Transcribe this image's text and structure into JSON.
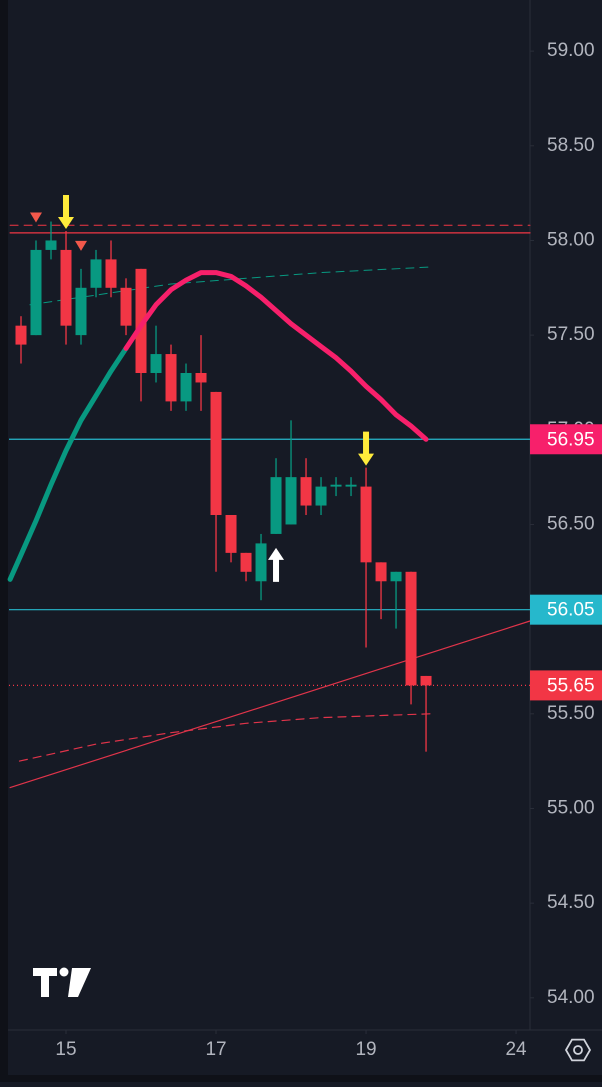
{
  "chart_data": {
    "type": "candlestick",
    "up_color": "#089981",
    "down_color": "#f23645",
    "xlim": [
      -0.8,
      33.93
    ],
    "ylim": [
      53.83,
      59.27
    ],
    "xticks": [
      {
        "value": 3,
        "label": "15"
      },
      {
        "value": 13,
        "label": "17"
      },
      {
        "value": 23,
        "label": "19"
      },
      {
        "value": 33,
        "label": "24"
      }
    ],
    "yticks": [
      {
        "value": 54,
        "label": "54.00"
      },
      {
        "value": 54.5,
        "label": "54.50"
      },
      {
        "value": 55,
        "label": "55.00"
      },
      {
        "value": 55.5,
        "label": "55.50"
      },
      {
        "value": 56,
        "label": "56.00"
      },
      {
        "value": 56.5,
        "label": "56.50"
      },
      {
        "value": 57,
        "label": "57.00"
      },
      {
        "value": 57.5,
        "label": "57.50"
      },
      {
        "value": 58,
        "label": "58.00"
      },
      {
        "value": 58.5,
        "label": "58.50"
      },
      {
        "value": 59,
        "label": "59.00"
      }
    ],
    "open": [
      57.55,
      57.5,
      57.95,
      57.95,
      57.5,
      57.75,
      57.9,
      57.75,
      57.85,
      57.3,
      57.4,
      57.15,
      57.3,
      57.2,
      56.55,
      56.35,
      56.2,
      56.45,
      56.5,
      56.75,
      56.6,
      56.7,
      56.7,
      56.7,
      56.3,
      56.2,
      56.25,
      55.7
    ],
    "high": [
      57.6,
      58.0,
      58.1,
      58.05,
      57.85,
      57.95,
      58.0,
      57.8,
      57.85,
      57.55,
      57.45,
      57.35,
      57.5,
      57.2,
      56.55,
      56.35,
      56.45,
      56.85,
      57.05,
      56.85,
      56.75,
      56.75,
      56.75,
      56.8,
      56.3,
      56.25,
      56.25,
      55.7
    ],
    "low": [
      57.35,
      57.5,
      57.9,
      57.45,
      57.45,
      57.7,
      57.7,
      57.5,
      57.15,
      57.25,
      57.1,
      57.1,
      57.1,
      56.25,
      56.3,
      56.2,
      56.1,
      56.45,
      56.5,
      56.55,
      56.55,
      56.65,
      56.65,
      55.85,
      56.0,
      55.95,
      55.55,
      55.3
    ],
    "close": [
      57.45,
      57.95,
      58.0,
      57.55,
      57.75,
      57.9,
      57.75,
      57.55,
      57.3,
      57.4,
      57.15,
      57.3,
      57.25,
      56.55,
      56.35,
      56.25,
      56.4,
      56.75,
      56.75,
      56.6,
      56.7,
      56.71,
      56.71,
      56.3,
      56.2,
      56.25,
      55.65,
      55.65
    ],
    "lines": [
      {
        "color": "#089981",
        "width": 5,
        "x": [
          -0.73,
          0,
          1,
          2,
          3,
          4,
          5,
          6,
          7
        ],
        "y": [
          56.21,
          56.34,
          56.52,
          56.71,
          56.89,
          57.05,
          57.18,
          57.31,
          57.43
        ]
      },
      {
        "color": "#f7206b",
        "width": 5,
        "x": [
          7,
          8,
          9,
          10,
          11,
          12,
          13,
          14,
          15,
          16,
          17,
          18,
          19,
          20,
          21,
          22,
          23,
          24,
          25,
          26,
          27
        ],
        "y": [
          57.43,
          57.55,
          57.66,
          57.74,
          57.79,
          57.83,
          57.83,
          57.81,
          57.76,
          57.7,
          57.63,
          57.56,
          57.5,
          57.44,
          57.38,
          57.31,
          57.23,
          57.16,
          57.08,
          57.02,
          56.95
        ]
      },
      {
        "color": "#e0344a",
        "width": 1.2,
        "x": [
          -0.73,
          33.93
        ],
        "y": [
          55.11,
          55.99
        ]
      },
      {
        "color": "#e0344a",
        "width": 1.2,
        "dashed": true,
        "x": [
          -0.1,
          5,
          10,
          15,
          20,
          27.3
        ],
        "y": [
          55.25,
          55.34,
          55.4,
          55.45,
          55.48,
          55.5
        ]
      },
      {
        "color": "#089981",
        "width": 1,
        "dashed": true,
        "x": [
          0.6,
          10,
          20,
          27.3
        ],
        "y": [
          57.66,
          57.77,
          57.83,
          57.86
        ]
      },
      {
        "color": "#f23645",
        "width": 1,
        "dashed": true,
        "x": [
          -0.73,
          33.93
        ],
        "y": [
          58.08,
          58.08
        ]
      },
      {
        "color": "#f23645",
        "width": 1.2,
        "x": [
          -0.73,
          33.93
        ],
        "y": [
          58.04,
          58.04
        ]
      }
    ],
    "price_lines": [
      {
        "value": 56.95,
        "line_color": "#26b8cc",
        "box_color": "#f7206b",
        "dotted": false
      },
      {
        "value": 56.05,
        "line_color": "#26b8cc",
        "box_color": "#26b8cc",
        "dotted": false
      },
      {
        "value": 55.65,
        "line_color": "#f23645",
        "box_color": "#f23645",
        "dotted": true
      }
    ],
    "markers": [
      {
        "index": 1,
        "shape": "triangle-down",
        "color": "#f2584b"
      },
      {
        "index": 3,
        "shape": "arrow-down",
        "color": "#ffeb3b"
      },
      {
        "index": 4,
        "shape": "triangle-down",
        "color": "#f2584b"
      },
      {
        "index": 17,
        "shape": "arrow-up",
        "color": "#ffffff"
      },
      {
        "index": 23,
        "shape": "arrow-down",
        "color": "#ffeb3b"
      }
    ]
  }
}
